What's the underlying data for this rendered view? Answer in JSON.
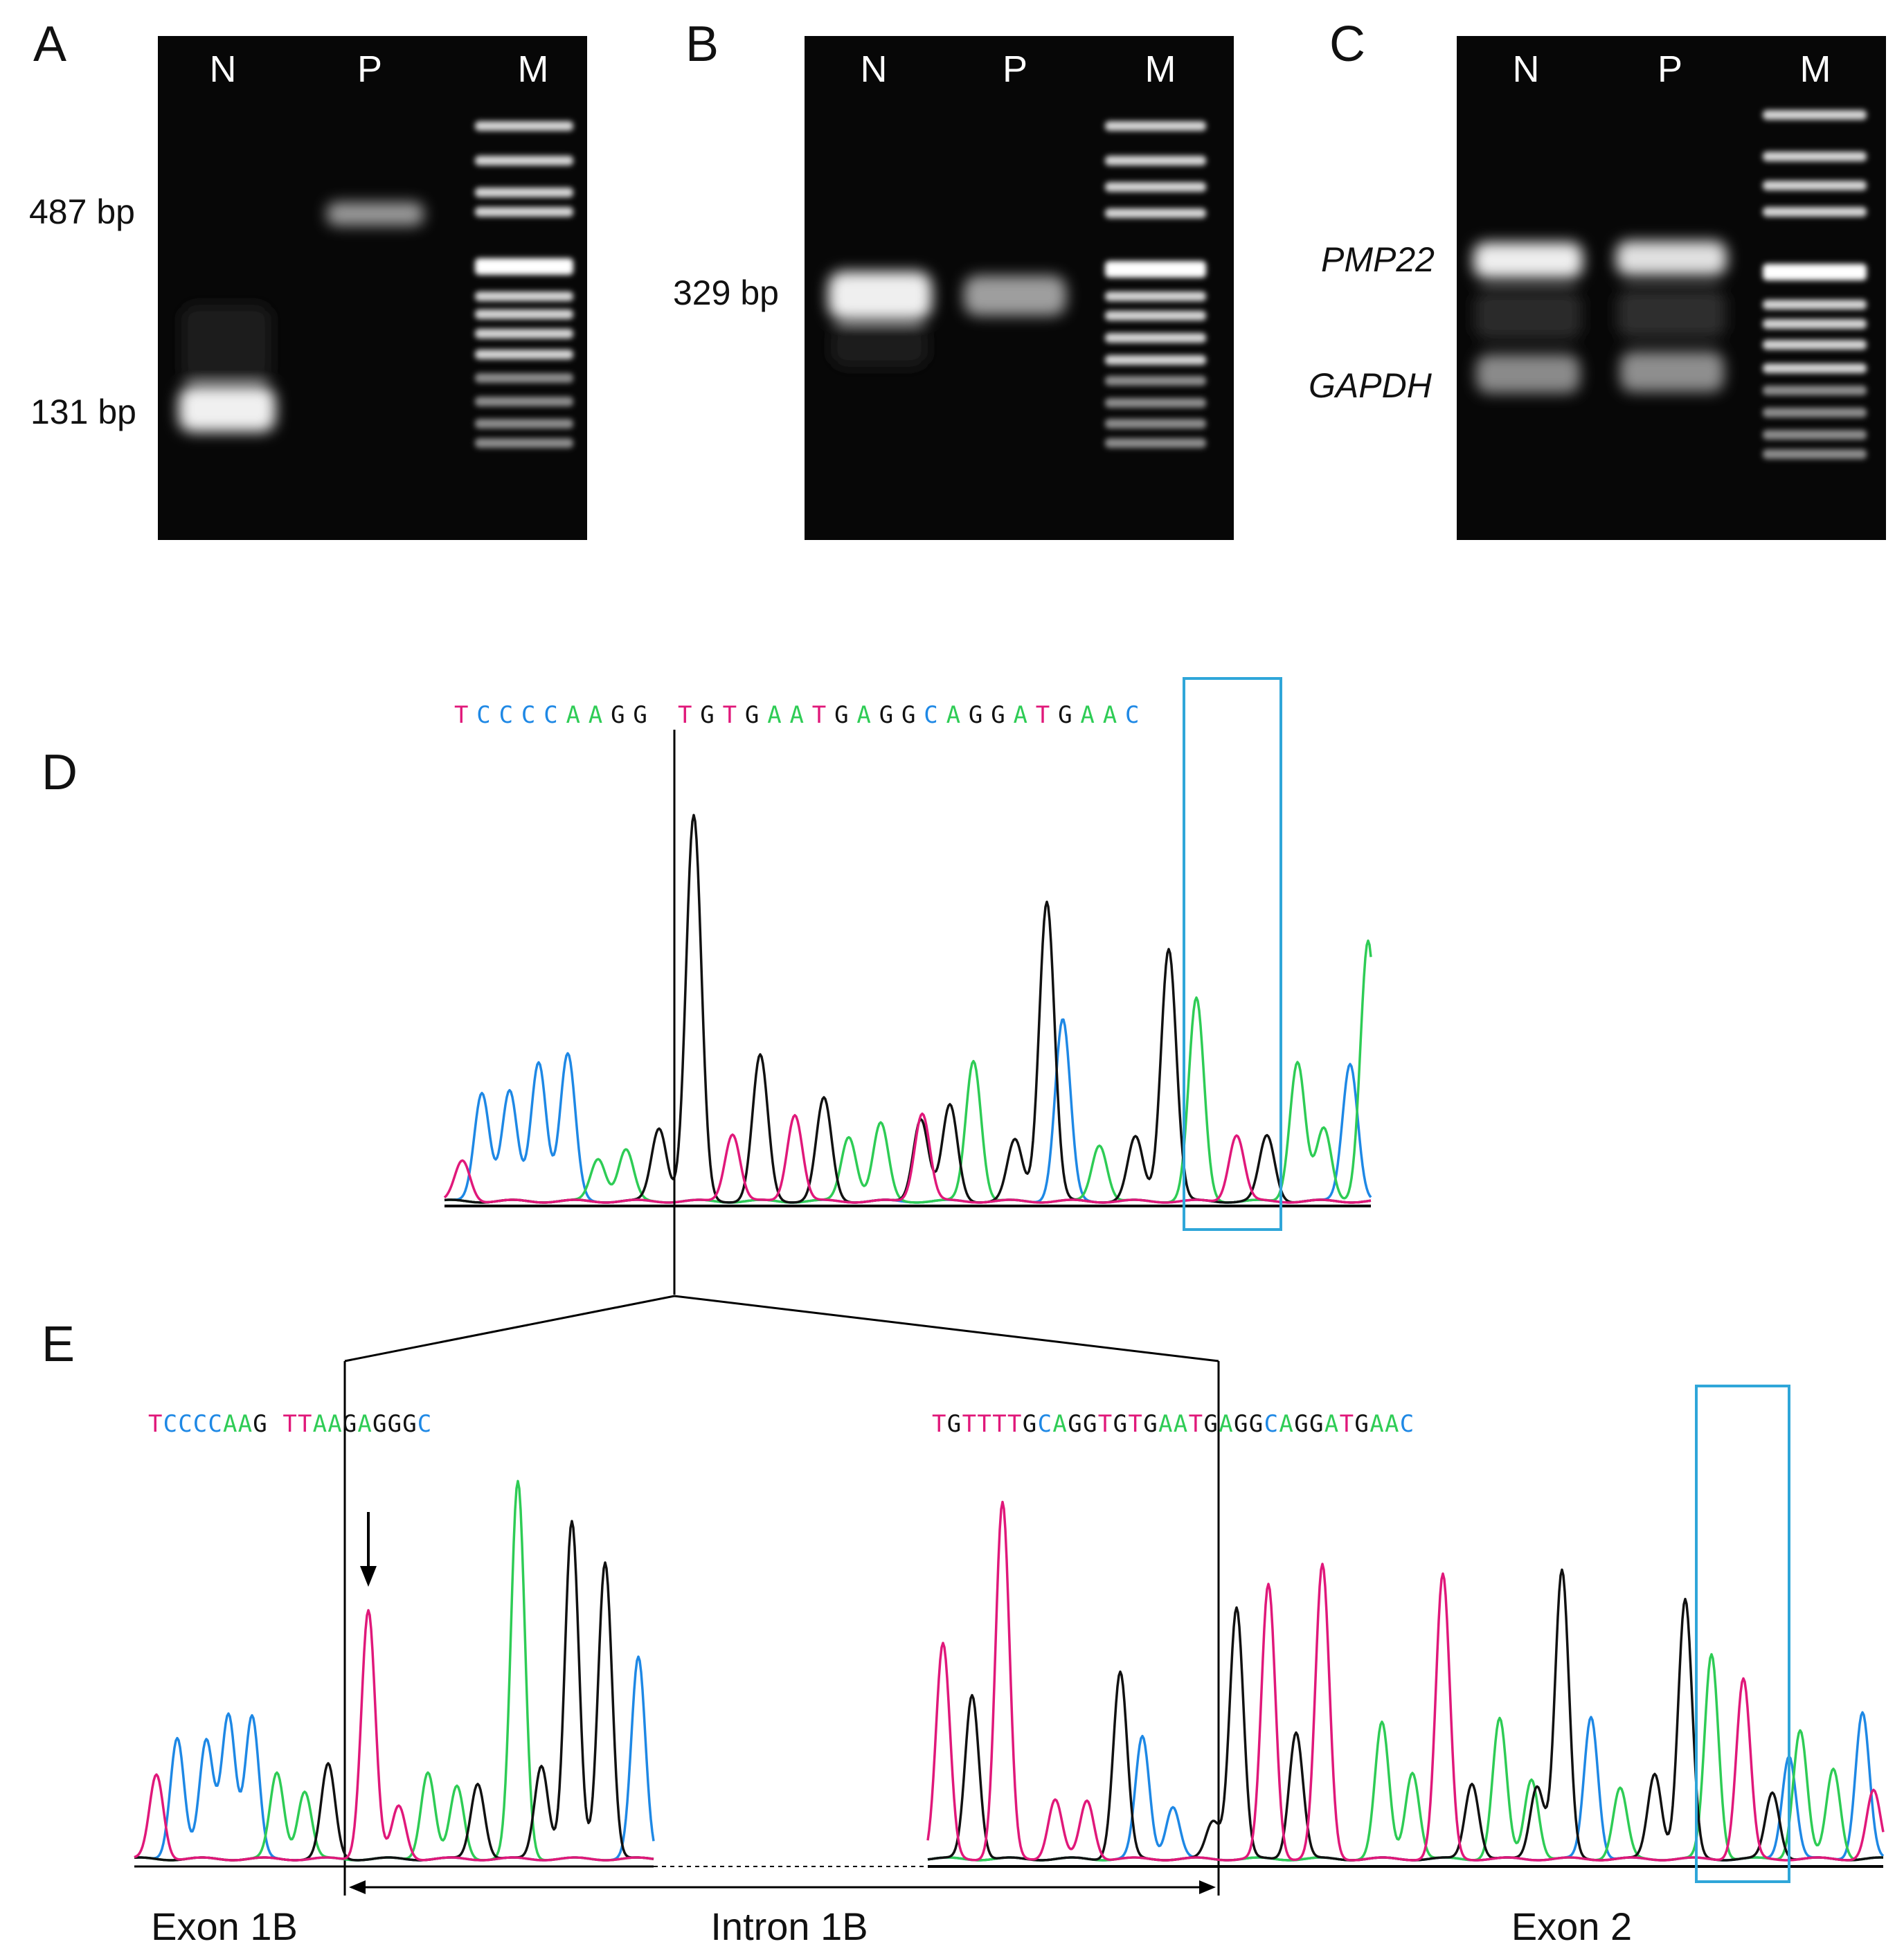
{
  "figure": {
    "panel_labels": [
      "A",
      "B",
      "C",
      "D",
      "E"
    ],
    "colors": {
      "A": "#2ecc55",
      "C": "#1e88e5",
      "G": "#111111",
      "T": "#e0187a",
      "box": "#2fa6d9"
    }
  },
  "gels": [
    {
      "label": "A",
      "lanes": [
        "N",
        "P",
        "M"
      ],
      "size_labels": [
        "487 bp",
        "131 bp"
      ]
    },
    {
      "label": "B",
      "lanes": [
        "N",
        "P",
        "M"
      ],
      "size_labels": [
        "329 bp"
      ]
    },
    {
      "label": "C",
      "lanes": [
        "N",
        "P",
        "M"
      ],
      "gene_labels": [
        "PMP22",
        "GAPDH"
      ]
    }
  ],
  "chromatograms": {
    "D": {
      "label": "D",
      "sequence": "TCCCCAAGG TGTGAATGAGGCAGGATGAAC"
    },
    "E": {
      "label": "E",
      "sequence_left": "TCCCCAAG TTAAGAGGGC",
      "sequence_right": "TGTTTTGCAGGTGTGAATGAGGCAGGATGAAC",
      "regions": [
        "Exon 1B",
        "Intron 1B",
        "Exon 2"
      ]
    }
  }
}
